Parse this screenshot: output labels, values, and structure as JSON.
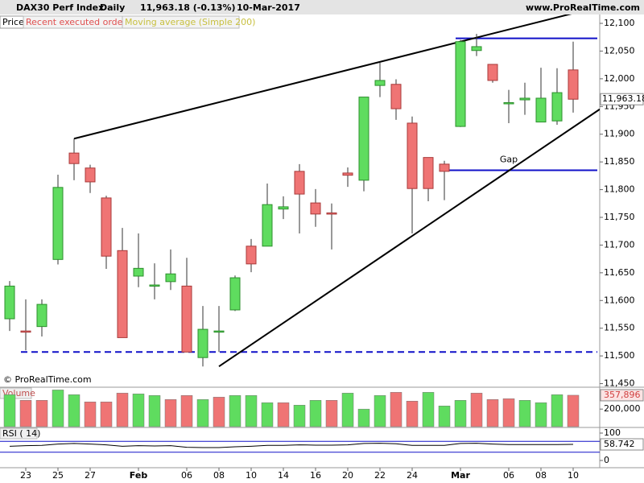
{
  "chart_data": [
    {
      "type": "candlestick",
      "title": "DAX30 Perf Index",
      "subtitle": "Daily",
      "change": "11,963.18 (-0.13%)",
      "date": "10-Mar-2017",
      "source": "www.ProRealTime.com",
      "copyright": "© ProRealTime.com",
      "legend": [
        "Price",
        "Recent executed orders",
        "Moving average (Simple 200)"
      ],
      "annotation": "Gap",
      "categories": [
        null,
        "23",
        null,
        "25",
        null,
        "27",
        null,
        null,
        "Feb",
        null,
        null,
        "06",
        null,
        "08",
        null,
        "10",
        null,
        "14",
        null,
        "16",
        null,
        "20",
        null,
        "22",
        null,
        "24",
        null,
        null,
        "Mar",
        null,
        null,
        "06",
        null,
        "08",
        null,
        "10"
      ],
      "open": [
        11567,
        11545,
        11553,
        11674,
        11866,
        11839,
        11785,
        11690,
        11644,
        11626,
        11634,
        11626,
        11497,
        11543,
        11583,
        11698,
        11698,
        11765,
        11833,
        11776,
        11758,
        11830,
        11817,
        11988,
        11990,
        11920,
        11858,
        11846,
        11914,
        12051,
        12026,
        11955,
        11962,
        11922,
        11924,
        12016
      ],
      "high": [
        11635,
        11602,
        11602,
        11827,
        11892,
        11845,
        11789,
        11731,
        11721,
        11667,
        11692,
        11677,
        11590,
        11590,
        11645,
        11711,
        11811,
        11788,
        11846,
        11801,
        11775,
        11840,
        11967,
        12029,
        11999,
        11932,
        11858,
        11852,
        12070,
        12081,
        12026,
        11980,
        11993,
        12020,
        12019,
        12067
      ],
      "low": [
        11545,
        11510,
        11535,
        11665,
        11817,
        11794,
        11657,
        11533,
        11624,
        11602,
        11619,
        11507,
        11481,
        11507,
        11581,
        11651,
        11698,
        11747,
        11721,
        11733,
        11692,
        11805,
        11797,
        11967,
        11926,
        11721,
        11779,
        11781,
        11913,
        12041,
        11993,
        11920,
        11935,
        11922,
        11917,
        11939
      ],
      "close": [
        11626,
        11544,
        11593,
        11804,
        11847,
        11814,
        11680,
        11533,
        11658,
        11628,
        11648,
        11507,
        11548,
        11545,
        11641,
        11666,
        11773,
        11769,
        11792,
        11756,
        11756,
        11826,
        11967,
        11997,
        11946,
        11802,
        11802,
        11833,
        12067,
        12058,
        11997,
        11957,
        11965,
        11965,
        11975,
        11963.18
      ],
      "close_label": "11,963.18",
      "up_color": "#5fdc5f",
      "down_color": "#ef7474",
      "ylim": [
        11445,
        12116
      ],
      "yticks": [
        {
          "value": 11450,
          "label": "11,450"
        },
        {
          "value": 11500,
          "label": "11,500"
        },
        {
          "value": 11550,
          "label": "11,550"
        },
        {
          "value": 11600,
          "label": "11,600"
        },
        {
          "value": 11650,
          "label": "11,650"
        },
        {
          "value": 11700,
          "label": "11,700"
        },
        {
          "value": 11750,
          "label": "11,750"
        },
        {
          "value": 11800,
          "label": "11,800"
        },
        {
          "value": 11850,
          "label": "11,850"
        },
        {
          "value": 11900,
          "label": "11,900"
        },
        {
          "value": 11950,
          "label": "11,950"
        },
        {
          "value": 12000,
          "label": "12,000"
        },
        {
          "value": 12050,
          "label": "12,050"
        },
        {
          "value": 12100,
          "label": "12,100"
        }
      ],
      "levels": [
        {
          "value": 11507,
          "from": 1,
          "style": "dashed"
        },
        {
          "value": 12073,
          "from": 28,
          "style": "solid"
        },
        {
          "value": 11835,
          "from": 27,
          "style": "solid"
        }
      ],
      "level_color": "#1010c8",
      "trendlines": [
        {
          "from": [
            4,
            11892
          ],
          "to": [
            35.4,
            12121
          ]
        },
        {
          "from": [
            13,
            11481
          ],
          "to": [
            36.65,
            11945
          ]
        }
      ]
    },
    {
      "type": "bar",
      "name": "Volume",
      "values": [
        364000,
        300000,
        300000,
        418000,
        364000,
        282000,
        282000,
        382000,
        373000,
        355000,
        309000,
        355000,
        309000,
        336000,
        355000,
        355000,
        273000,
        273000,
        245000,
        300000,
        300000,
        382000,
        200000,
        355000,
        391000,
        291000,
        391000,
        236000,
        300000,
        382000,
        309000,
        318000,
        300000,
        273000,
        364000,
        357896
      ],
      "last_label": "357,896",
      "colors": [
        "#5fdc5f",
        "#ef7474",
        "#ef7474",
        "#5fdc5f",
        "#5fdc5f",
        "#ef7474",
        "#ef7474",
        "#ef7474",
        "#5fdc5f",
        "#5fdc5f",
        "#ef7474",
        "#ef7474",
        "#5fdc5f",
        "#ef7474",
        "#5fdc5f",
        "#5fdc5f",
        "#5fdc5f",
        "#ef7474",
        "#5fdc5f",
        "#5fdc5f",
        "#ef7474",
        "#5fdc5f",
        "#5fdc5f",
        "#5fdc5f",
        "#ef7474",
        "#ef7474",
        "#5fdc5f",
        "#5fdc5f",
        "#5fdc5f",
        "#ef7474",
        "#ef7474",
        "#ef7474",
        "#5fdc5f",
        "#5fdc5f",
        "#5fdc5f",
        "#ef7474"
      ],
      "ylim": [
        0,
        440000
      ],
      "yticks": [
        {
          "value": 200000,
          "label": "200,000"
        }
      ]
    },
    {
      "type": "line",
      "name": "RSI ( 14)",
      "values": [
        52,
        54,
        55,
        60,
        62,
        60,
        57,
        52,
        54,
        53,
        54,
        48,
        47,
        47,
        50,
        52,
        55,
        55,
        57,
        56,
        56,
        57,
        62,
        63,
        61,
        55,
        55,
        55,
        62,
        63,
        60,
        58,
        58,
        58,
        58,
        58.742
      ],
      "last_label": "58.742",
      "color": "#000000",
      "levels": [
        70,
        30
      ],
      "ylim": [
        -23.5,
        114.7
      ],
      "yticks": [
        0,
        100
      ]
    }
  ]
}
